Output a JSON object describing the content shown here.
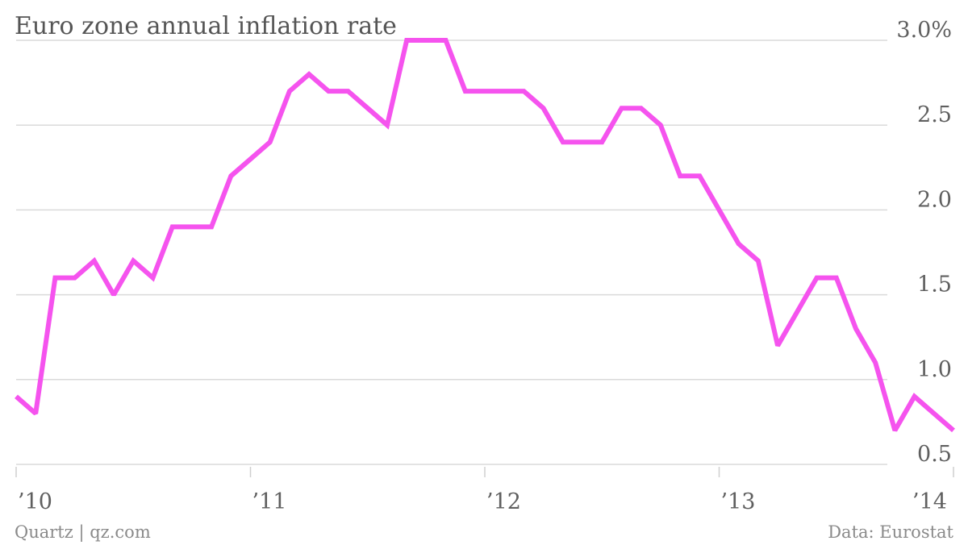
{
  "chart_data": {
    "type": "line",
    "title": "Euro zone annual inflation rate",
    "xlabel": "",
    "ylabel": "",
    "x_ticks": [
      "’10",
      "’11",
      "’12",
      "’13",
      "’14"
    ],
    "y_ticks": [
      "3.0%",
      "2.5",
      "2.0",
      "1.5",
      "1.0",
      "0.5"
    ],
    "ylim": [
      0.5,
      3.0
    ],
    "xlim": [
      "2010-01",
      "2014-01"
    ],
    "grid": true,
    "legend": "none",
    "y_axis_side": "right",
    "line_color": "#f553ee",
    "x": [
      "2010-01",
      "2010-02",
      "2010-03",
      "2010-04",
      "2010-05",
      "2010-06",
      "2010-07",
      "2010-08",
      "2010-09",
      "2010-10",
      "2010-11",
      "2010-12",
      "2011-01",
      "2011-02",
      "2011-03",
      "2011-04",
      "2011-05",
      "2011-06",
      "2011-07",
      "2011-08",
      "2011-09",
      "2011-10",
      "2011-11",
      "2011-12",
      "2012-01",
      "2012-02",
      "2012-03",
      "2012-04",
      "2012-05",
      "2012-06",
      "2012-07",
      "2012-08",
      "2012-09",
      "2012-10",
      "2012-11",
      "2012-12",
      "2013-01",
      "2013-02",
      "2013-03",
      "2013-04",
      "2013-05",
      "2013-06",
      "2013-07",
      "2013-08",
      "2013-09",
      "2013-10",
      "2013-11",
      "2013-12",
      "2014-01"
    ],
    "series": [
      {
        "values": [
          0.9,
          0.8,
          1.6,
          1.6,
          1.7,
          1.5,
          1.7,
          1.6,
          1.9,
          1.9,
          1.9,
          2.2,
          2.3,
          2.4,
          2.7,
          2.8,
          2.7,
          2.7,
          2.6,
          2.5,
          3.0,
          3.0,
          3.0,
          2.7,
          2.7,
          2.7,
          2.7,
          2.6,
          2.4,
          2.4,
          2.4,
          2.6,
          2.6,
          2.5,
          2.2,
          2.2,
          2.0,
          1.8,
          1.7,
          1.2,
          1.4,
          1.6,
          1.6,
          1.3,
          1.1,
          0.7,
          0.9,
          0.8,
          0.7
        ]
      }
    ]
  },
  "footer": {
    "source_left": "Quartz | qz.com",
    "source_right": "Data: Eurostat"
  }
}
